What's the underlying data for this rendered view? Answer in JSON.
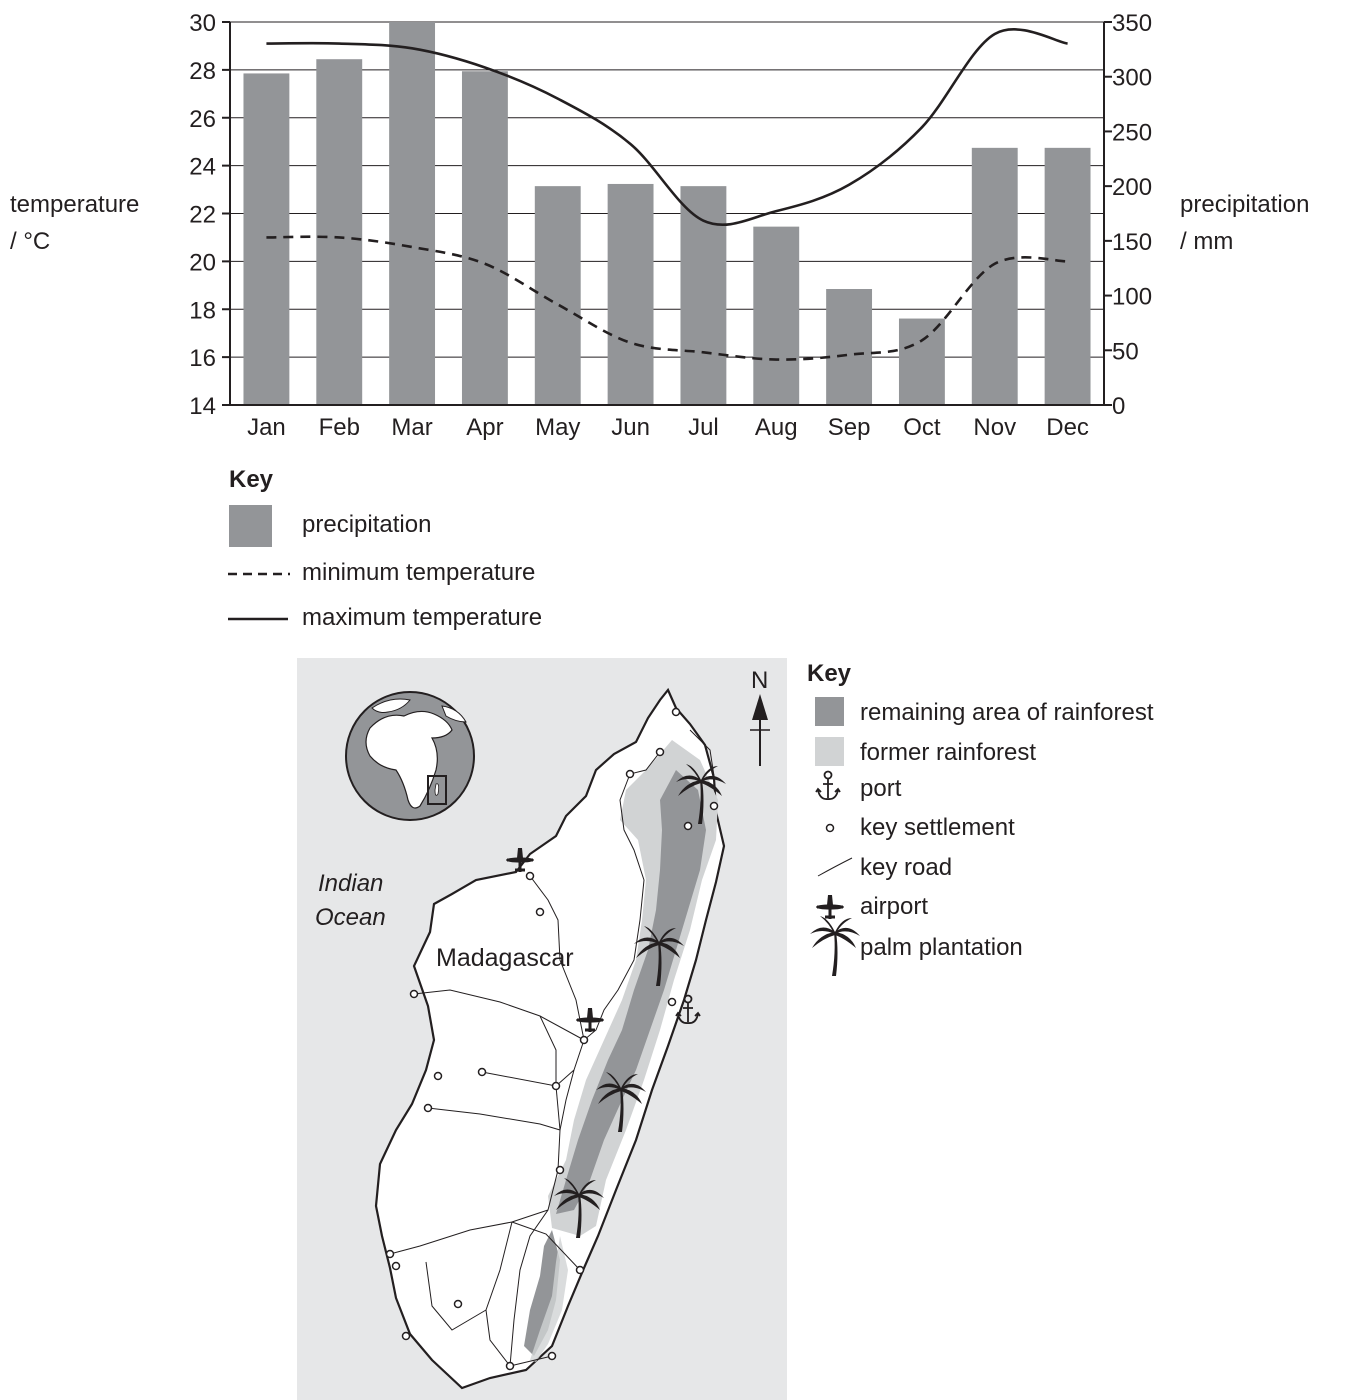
{
  "chart_data": {
    "type": "bar",
    "categories": [
      "Jan",
      "Feb",
      "Mar",
      "Apr",
      "May",
      "Jun",
      "Jul",
      "Aug",
      "Sep",
      "Oct",
      "Nov",
      "Dec"
    ],
    "precipitation": {
      "name": "precipitation",
      "values": [
        303,
        316,
        350,
        305,
        200,
        202,
        200,
        163,
        106,
        79,
        235,
        235
      ],
      "color": "#939598"
    },
    "max_temperature": {
      "name": "maximum temperature",
      "values": [
        29.1,
        29.1,
        28.9,
        28.1,
        26.8,
        24.9,
        21.7,
        22.1,
        23.2,
        25.6,
        29.5,
        29.1
      ],
      "style": "solid"
    },
    "min_temperature": {
      "name": "minimum temperature",
      "values": [
        21.0,
        21.0,
        20.6,
        19.9,
        18.2,
        16.6,
        16.2,
        15.9,
        16.1,
        16.7,
        19.9,
        20.0
      ],
      "style": "dashed"
    },
    "left_axis": {
      "label_line1": "temperature",
      "label_line2": "/ °C",
      "ylim": [
        14,
        30
      ],
      "ticks": [
        14,
        16,
        18,
        20,
        22,
        24,
        26,
        28,
        30
      ]
    },
    "right_axis": {
      "label_line1": "precipitation",
      "label_line2": "/ mm",
      "ylim": [
        0,
        350
      ],
      "ticks": [
        0,
        50,
        100,
        150,
        200,
        250,
        300,
        350
      ]
    },
    "grid": true,
    "legend": {
      "title": "Key",
      "items": [
        "precipitation",
        "minimum temperature",
        "maximum temperature"
      ]
    }
  },
  "map": {
    "ocean_label_line1": "Indian",
    "ocean_label_line2": "Ocean",
    "country_label": "Madagascar",
    "north_label": "N",
    "colors": {
      "sea": "#e6e7e8",
      "remaining_rainforest": "#939598",
      "former_rainforest": "#d1d3d4",
      "land": "#ffffff"
    },
    "key": {
      "title": "Key",
      "items": [
        {
          "icon": "remaining-rainforest-swatch",
          "label": "remaining area of rainforest"
        },
        {
          "icon": "former-rainforest-swatch",
          "label": "former rainforest"
        },
        {
          "icon": "anchor-icon",
          "label": "port"
        },
        {
          "icon": "settlement-dot-icon",
          "label": "key settlement"
        },
        {
          "icon": "road-line-icon",
          "label": "key road"
        },
        {
          "icon": "airplane-icon",
          "label": "airport"
        },
        {
          "icon": "palm-tree-icon",
          "label": "palm plantation"
        }
      ]
    }
  }
}
